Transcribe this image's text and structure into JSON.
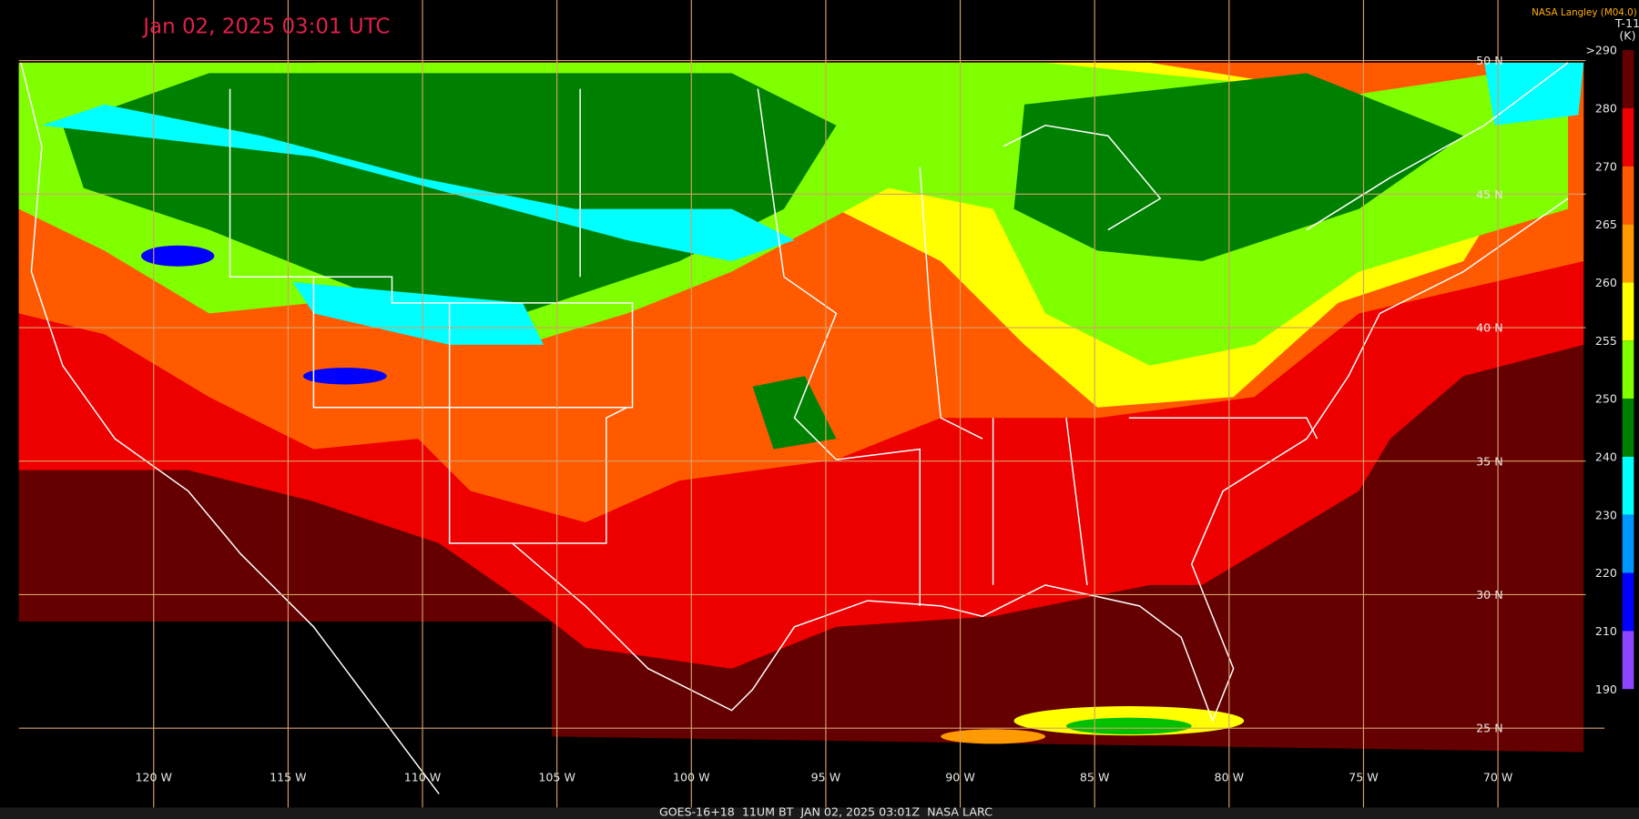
{
  "header": {
    "title": "Jan 02, 2025 03:01 UTC",
    "credit": "NASA Langley (M04.0)"
  },
  "colorbar": {
    "title": "T-11",
    "unit": "(K)",
    "labels": [
      ">290",
      "280",
      "270",
      "265",
      "260",
      "255",
      "250",
      "240",
      "230",
      "220",
      "210",
      "190"
    ],
    "colors": [
      "#640000",
      "#ee0000",
      "#ff5a00",
      "#ff9a00",
      "#ffff00",
      "#80ff00",
      "#008000",
      "#00ffff",
      "#0096ff",
      "#0000ff",
      "#8c46ff"
    ]
  },
  "map": {
    "latitude_labels": [
      "50 N",
      "45 N",
      "40 N",
      "35 N",
      "30 N",
      "25 N"
    ],
    "longitude_labels": [
      "120 W",
      "115 W",
      "110 W",
      "105 W",
      "100 W",
      "95 W",
      "90 W",
      "85 W",
      "80 W",
      "75 W",
      "70 W"
    ]
  },
  "footer": {
    "caption": "GOES-16+18  11UM BT  JAN 02, 2025 03:01Z  NASA LARC"
  }
}
